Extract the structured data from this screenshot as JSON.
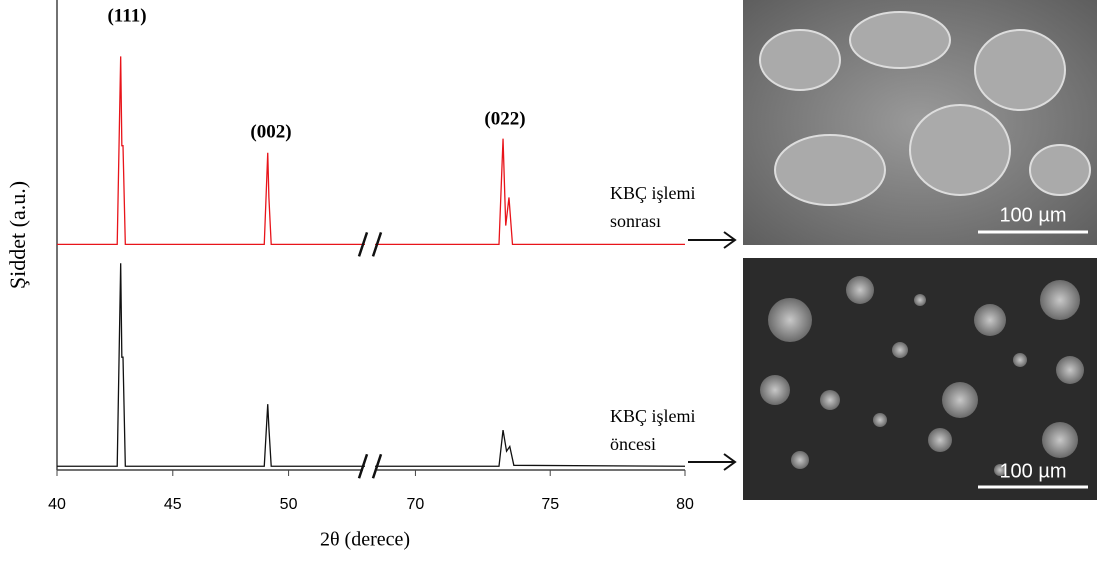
{
  "chart_data": {
    "type": "line",
    "x_label": "2θ (derece)",
    "y_label": "Şiddet (a.u.)",
    "xlim": [
      40,
      80
    ],
    "x_break": [
      53.3,
      68.5
    ],
    "xticks": [
      40,
      45,
      50,
      70,
      75,
      80
    ],
    "ylim": [
      0,
      100
    ],
    "series": [
      {
        "name": "KBÇ işlemi sonrası",
        "color": "#e8141a",
        "x": [
          40,
          42.6,
          42.75,
          42.8,
          42.85,
          42.95,
          48.95,
          49.1,
          49.15,
          49.25,
          53.3,
          null,
          68.5,
          73.1,
          73.25,
          73.35,
          73.47,
          73.6,
          80
        ],
        "values": [
          48,
          48,
          88,
          69,
          69,
          48,
          48,
          67.5,
          58,
          48,
          48,
          null,
          48,
          48,
          70.5,
          52,
          58,
          48,
          48
        ]
      },
      {
        "name": "KBÇ işlemi öncesi",
        "color": "#111111",
        "x": [
          40,
          42.6,
          42.75,
          42.8,
          42.85,
          42.95,
          48.95,
          49.1,
          49.15,
          49.25,
          53.3,
          null,
          68.5,
          73.1,
          73.25,
          73.38,
          73.5,
          73.65,
          80
        ],
        "values": [
          0.8,
          0.8,
          44,
          24,
          24,
          0.8,
          0.8,
          14,
          9,
          0.8,
          0.8,
          null,
          0.8,
          0.8,
          8.5,
          4,
          5,
          1,
          0.8
        ]
      }
    ],
    "peak_labels": [
      "(111)",
      "(002)",
      "(022)"
    ],
    "scale_bars": [
      "100 µm",
      "100 µm"
    ]
  }
}
